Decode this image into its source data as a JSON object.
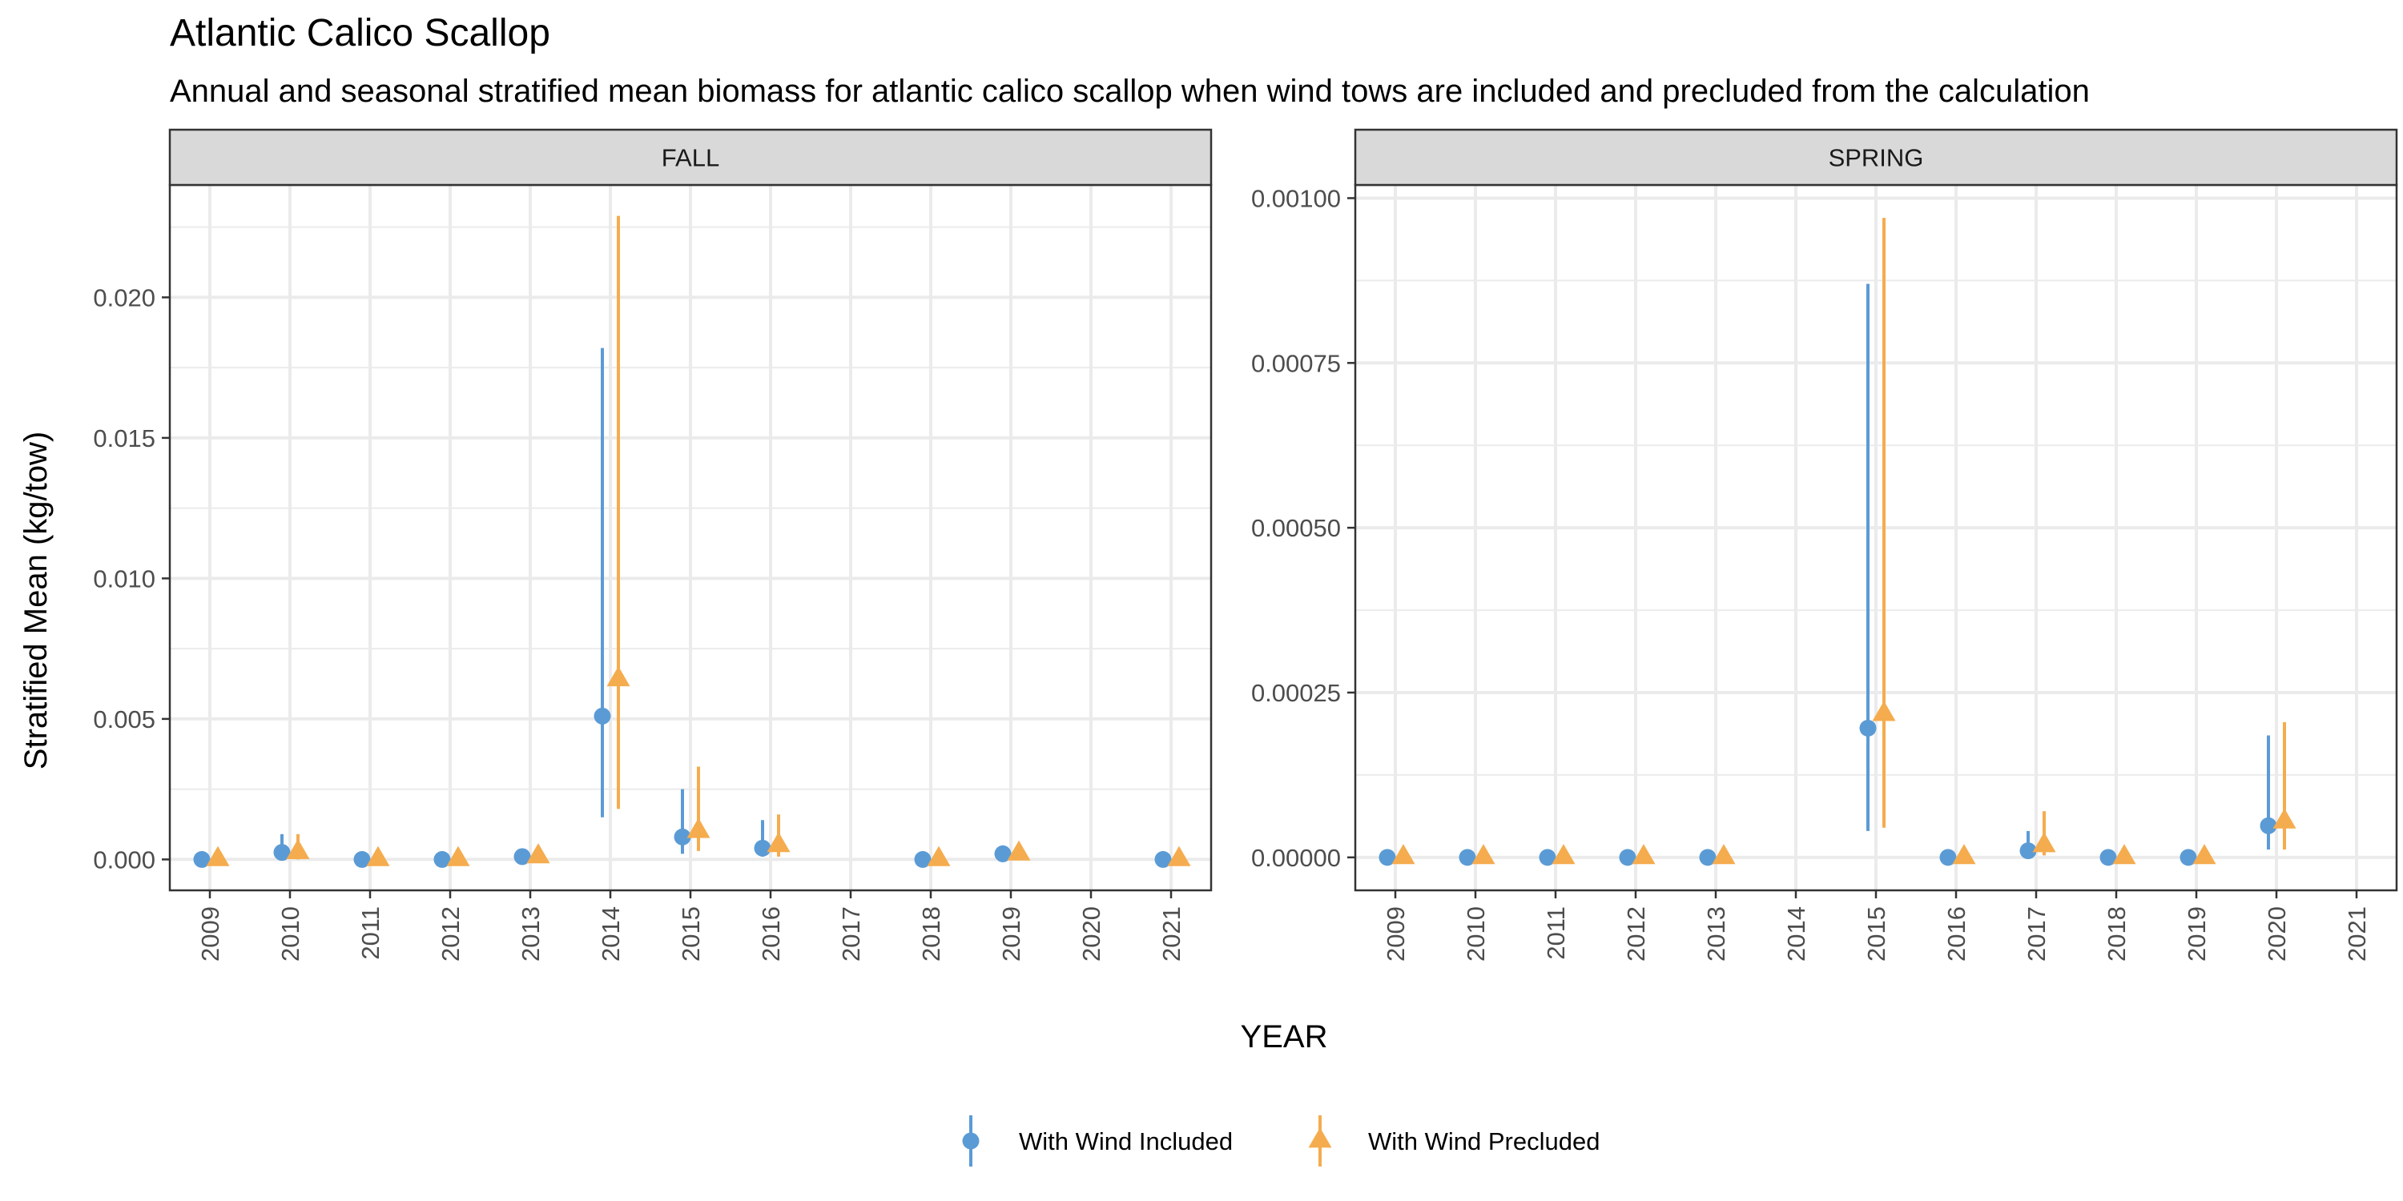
{
  "title": "Atlantic Calico Scallop",
  "subtitle": "Annual and seasonal stratified mean biomass for atlantic calico scallop when wind tows are included and precluded from the calculation",
  "colors": {
    "with_wind_included": "#5B9BD5",
    "with_wind_precluded": "#F5AC4E",
    "strip_fill": "#D9D9D9",
    "grid": "#EBEBEB",
    "panel_border": "#333333"
  },
  "chart_data": {
    "type": "scatter",
    "xlabel": "YEAR",
    "ylabel": "Stratified Mean (kg/tow)",
    "legend_position": "bottom",
    "grid": true,
    "series_names": [
      "With Wind Included",
      "With Wind Precluded"
    ],
    "panels": [
      {
        "strip": "FALL",
        "x_ticks": [
          "2009",
          "2010",
          "2011",
          "2012",
          "2013",
          "2014",
          "2015",
          "2016",
          "2017",
          "2018",
          "2019",
          "2020",
          "2021"
        ],
        "y_ticks": [
          "0.000",
          "0.005",
          "0.010",
          "0.015",
          "0.020"
        ],
        "y_tick_values": [
          0,
          0.005,
          0.01,
          0.015,
          0.02
        ],
        "ylim": [
          -0.0011,
          0.024
        ],
        "series": [
          {
            "name": "With Wind Included",
            "shape": "circle",
            "points": [
              {
                "x": "2009",
                "y": 0.0,
                "lo": 0.0,
                "hi": 0.0
              },
              {
                "x": "2010",
                "y": 0.00025,
                "lo": 0.0,
                "hi": 0.0009
              },
              {
                "x": "2011",
                "y": 0.0,
                "lo": 0.0,
                "hi": 0.0
              },
              {
                "x": "2012",
                "y": 0.0,
                "lo": 0.0,
                "hi": 0.0
              },
              {
                "x": "2013",
                "y": 0.0001,
                "lo": 0.0,
                "hi": 0.0003
              },
              {
                "x": "2014",
                "y": 0.0051,
                "lo": 0.0015,
                "hi": 0.0182
              },
              {
                "x": "2015",
                "y": 0.0008,
                "lo": 0.0002,
                "hi": 0.0025
              },
              {
                "x": "2016",
                "y": 0.0004,
                "lo": 0.0001,
                "hi": 0.0014
              },
              {
                "x": "2018",
                "y": 0.0,
                "lo": 0.0,
                "hi": 0.0
              },
              {
                "x": "2019",
                "y": 0.0002,
                "lo": 0.0,
                "hi": 0.0005
              },
              {
                "x": "2021",
                "y": 0.0,
                "lo": 0.0,
                "hi": 0.0
              }
            ]
          },
          {
            "name": "With Wind Precluded",
            "shape": "triangle",
            "points": [
              {
                "x": "2009",
                "y": 0.0,
                "lo": 0.0,
                "hi": 0.0
              },
              {
                "x": "2010",
                "y": 0.00025,
                "lo": 0.0,
                "hi": 0.0009
              },
              {
                "x": "2011",
                "y": 0.0,
                "lo": 0.0,
                "hi": 0.0
              },
              {
                "x": "2012",
                "y": 0.0,
                "lo": 0.0,
                "hi": 0.0
              },
              {
                "x": "2013",
                "y": 0.0001,
                "lo": 0.0,
                "hi": 0.0003
              },
              {
                "x": "2014",
                "y": 0.0064,
                "lo": 0.0018,
                "hi": 0.0229
              },
              {
                "x": "2015",
                "y": 0.001,
                "lo": 0.0003,
                "hi": 0.0033
              },
              {
                "x": "2016",
                "y": 0.0005,
                "lo": 0.0001,
                "hi": 0.0016
              },
              {
                "x": "2018",
                "y": 0.0,
                "lo": 0.0,
                "hi": 0.0
              },
              {
                "x": "2019",
                "y": 0.0002,
                "lo": 0.0,
                "hi": 0.0005
              },
              {
                "x": "2021",
                "y": 0.0,
                "lo": 0.0,
                "hi": 0.0
              }
            ]
          }
        ]
      },
      {
        "strip": "SPRING",
        "x_ticks": [
          "2009",
          "2010",
          "2011",
          "2012",
          "2013",
          "2014",
          "2015",
          "2016",
          "2017",
          "2018",
          "2019",
          "2020",
          "2021"
        ],
        "y_ticks": [
          "0.00000",
          "0.00025",
          "0.00050",
          "0.00075",
          "0.00100"
        ],
        "y_tick_values": [
          0,
          0.00025,
          0.0005,
          0.00075,
          0.001
        ],
        "ylim": [
          -5e-05,
          0.00102
        ],
        "series": [
          {
            "name": "With Wind Included",
            "shape": "circle",
            "points": [
              {
                "x": "2009",
                "y": 0.0,
                "lo": 0.0,
                "hi": 0.0
              },
              {
                "x": "2010",
                "y": 0.0,
                "lo": 0.0,
                "hi": 0.0
              },
              {
                "x": "2011",
                "y": 0.0,
                "lo": 0.0,
                "hi": 0.0
              },
              {
                "x": "2012",
                "y": 0.0,
                "lo": 0.0,
                "hi": 0.0
              },
              {
                "x": "2013",
                "y": 0.0,
                "lo": 0.0,
                "hi": 0.0
              },
              {
                "x": "2015",
                "y": 0.000196,
                "lo": 4e-05,
                "hi": 0.00087
              },
              {
                "x": "2016",
                "y": 0.0,
                "lo": 0.0,
                "hi": 0.0
              },
              {
                "x": "2017",
                "y": 1e-05,
                "lo": 0.0,
                "hi": 4e-05
              },
              {
                "x": "2018",
                "y": 0.0,
                "lo": 0.0,
                "hi": 0.0
              },
              {
                "x": "2019",
                "y": 0.0,
                "lo": 0.0,
                "hi": 0.0
              },
              {
                "x": "2020",
                "y": 4.8e-05,
                "lo": 1.2e-05,
                "hi": 0.000185
              }
            ]
          },
          {
            "name": "With Wind Precluded",
            "shape": "triangle",
            "points": [
              {
                "x": "2009",
                "y": 0.0,
                "lo": 0.0,
                "hi": 0.0
              },
              {
                "x": "2010",
                "y": 0.0,
                "lo": 0.0,
                "hi": 0.0
              },
              {
                "x": "2011",
                "y": 0.0,
                "lo": 0.0,
                "hi": 0.0
              },
              {
                "x": "2012",
                "y": 0.0,
                "lo": 0.0,
                "hi": 0.0
              },
              {
                "x": "2013",
                "y": 0.0,
                "lo": 0.0,
                "hi": 0.0
              },
              {
                "x": "2015",
                "y": 0.000217,
                "lo": 4.5e-05,
                "hi": 0.00097
              },
              {
                "x": "2016",
                "y": 0.0,
                "lo": 0.0,
                "hi": 0.0
              },
              {
                "x": "2017",
                "y": 1.8e-05,
                "lo": 3e-06,
                "hi": 7e-05
              },
              {
                "x": "2018",
                "y": 0.0,
                "lo": 0.0,
                "hi": 0.0
              },
              {
                "x": "2019",
                "y": 0.0,
                "lo": 0.0,
                "hi": 0.0
              },
              {
                "x": "2020",
                "y": 5.4e-05,
                "lo": 1.2e-05,
                "hi": 0.000205
              }
            ]
          }
        ]
      }
    ]
  }
}
